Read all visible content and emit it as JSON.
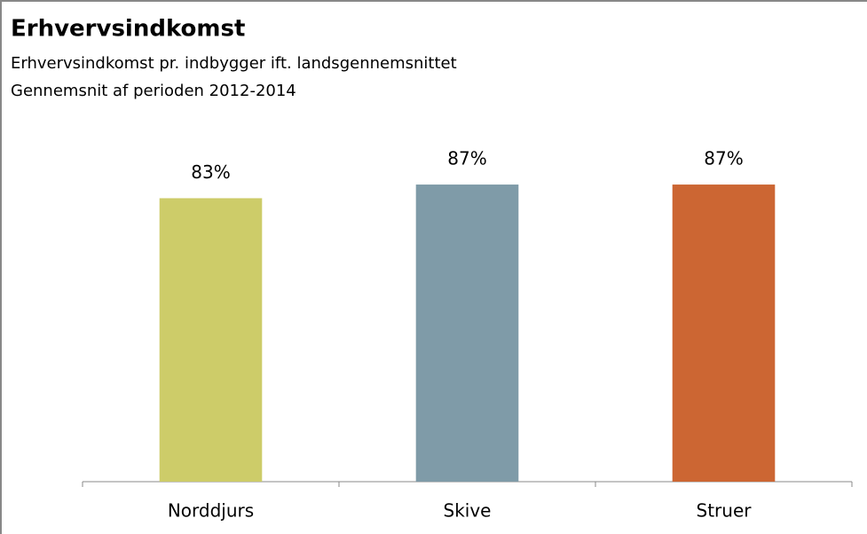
{
  "chart_data": {
    "type": "bar",
    "title": "Erhvervsindkomst",
    "subtitles": [
      "Erhvervsindkomst pr. indbygger ift. landsgennemsnittet",
      "Gennemsnit af perioden 2012-2014"
    ],
    "categories": [
      "Norddjurs",
      "Skive",
      "Struer"
    ],
    "values": [
      83,
      87,
      87
    ],
    "value_labels": [
      "83%",
      "87%",
      "87%"
    ],
    "colors": [
      "#cdcc69",
      "#7f9ba8",
      "#cc6633"
    ]
  }
}
